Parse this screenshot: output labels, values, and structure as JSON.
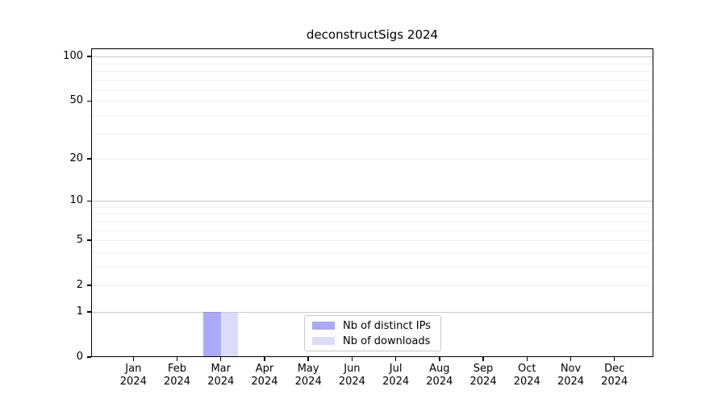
{
  "title": "deconstructSigs 2024",
  "chart_data": {
    "type": "bar",
    "title": "deconstructSigs 2024",
    "categories": [
      "Jan",
      "Feb",
      "Mar",
      "Apr",
      "May",
      "Jun",
      "Jul",
      "Aug",
      "Sep",
      "Oct",
      "Nov",
      "Dec"
    ],
    "year": "2024",
    "series": [
      {
        "name": "Nb of distinct IPs",
        "color": "#aaaaf8",
        "edge_color": "#9093e0",
        "values": [
          0,
          0,
          1,
          0,
          0,
          0,
          0,
          0,
          0,
          0,
          0,
          0
        ]
      },
      {
        "name": "Nb of downloads",
        "color": "#dcdcfa",
        "edge_color": "#c2c4ee",
        "values": [
          0,
          0,
          1,
          0,
          0,
          0,
          0,
          0,
          0,
          0,
          0,
          0
        ]
      }
    ],
    "y_scale": "log1p",
    "ylim": [
      0,
      113
    ],
    "y_ticks": [
      0,
      1,
      2,
      5,
      10,
      20,
      50,
      100
    ],
    "y_major_gridlines": [
      1,
      10,
      100
    ],
    "y_minor_gridlines": [
      2,
      3,
      4,
      5,
      6,
      7,
      8,
      9,
      20,
      30,
      40,
      50,
      60,
      70,
      80,
      90
    ],
    "grid": true,
    "legend": {
      "entries": [
        "Nb of distinct IPs",
        "Nb of downloads"
      ],
      "position": "bottom-center"
    },
    "colors": {
      "background": "#ffffff",
      "grid_major": "#c9c9c9",
      "grid_minor": "#eeeeee",
      "axis": "#000000",
      "legend_border": "#c9c9c9"
    }
  }
}
